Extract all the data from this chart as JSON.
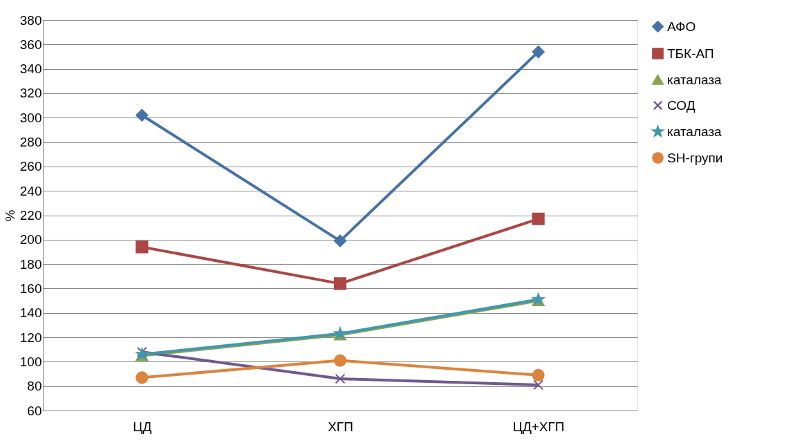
{
  "chart_data": {
    "type": "line",
    "ylabel": "%",
    "categories": [
      "ЦД",
      "ХГП",
      "ЦД+ХГП"
    ],
    "ylim": [
      60,
      380
    ],
    "yticks": [
      60,
      80,
      100,
      120,
      140,
      160,
      180,
      200,
      220,
      240,
      260,
      280,
      300,
      320,
      340,
      360,
      380
    ],
    "grid": "y",
    "legend": "right",
    "line_style": "solid",
    "series": [
      {
        "name": "АФО",
        "color": "#4572a7",
        "marker": "diamond",
        "values": [
          302,
          199,
          354
        ]
      },
      {
        "name": "ТБК-АП",
        "color": "#aa4643",
        "marker": "square",
        "values": [
          194,
          164,
          217
        ]
      },
      {
        "name": "каталаза",
        "color": "#89a54e",
        "marker": "triangle",
        "values": [
          105,
          122,
          150
        ]
      },
      {
        "name": "СОД",
        "color": "#71588f",
        "marker": "cross",
        "values": [
          108,
          86,
          81
        ]
      },
      {
        "name": "каталаза",
        "color": "#4198af",
        "marker": "star",
        "values": [
          106,
          123,
          151
        ]
      },
      {
        "name": "SH-групи",
        "color": "#db843d",
        "marker": "circle",
        "values": [
          87,
          101,
          89
        ]
      }
    ]
  }
}
